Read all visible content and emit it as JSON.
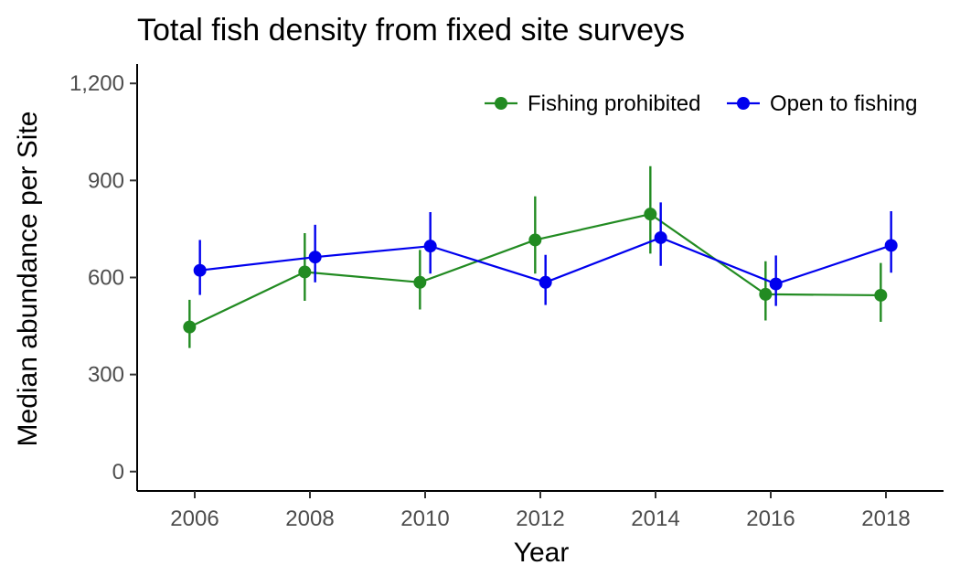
{
  "chart_data": {
    "type": "line",
    "title": "Total fish density from fixed site surveys",
    "xlabel": "Year",
    "ylabel": "Median abundance per Site",
    "xlim": [
      2005,
      2019
    ],
    "ylim": [
      -60,
      1260
    ],
    "x_ticks": [
      2006,
      2008,
      2010,
      2012,
      2014,
      2016,
      2018
    ],
    "x_tick_labels": [
      "2006",
      "2008",
      "2010",
      "2012",
      "2014",
      "2016",
      "2018"
    ],
    "y_ticks": [
      0,
      300,
      600,
      900,
      1200
    ],
    "y_tick_labels": [
      "0",
      "300",
      "600",
      "900",
      "1,200"
    ],
    "grid": false,
    "legend_position": "top-right",
    "series": [
      {
        "name": "Fishing prohibited",
        "color": "#228b22",
        "dodge": -0.09,
        "x": [
          2006,
          2008,
          2010,
          2012,
          2014,
          2016,
          2018
        ],
        "values": [
          447,
          617,
          585,
          716,
          796,
          548,
          545
        ],
        "lower": [
          382,
          528,
          501,
          612,
          674,
          467,
          463
        ],
        "upper": [
          531,
          737,
          685,
          851,
          944,
          650,
          645
        ]
      },
      {
        "name": "Open to fishing",
        "color": "#0000ee",
        "dodge": 0.09,
        "x": [
          2006,
          2008,
          2010,
          2012,
          2014,
          2016,
          2018
        ],
        "values": [
          622,
          663,
          697,
          585,
          723,
          580,
          699
        ],
        "lower": [
          546,
          585,
          612,
          515,
          636,
          512,
          615
        ],
        "upper": [
          716,
          763,
          802,
          670,
          832,
          668,
          805
        ]
      }
    ]
  }
}
